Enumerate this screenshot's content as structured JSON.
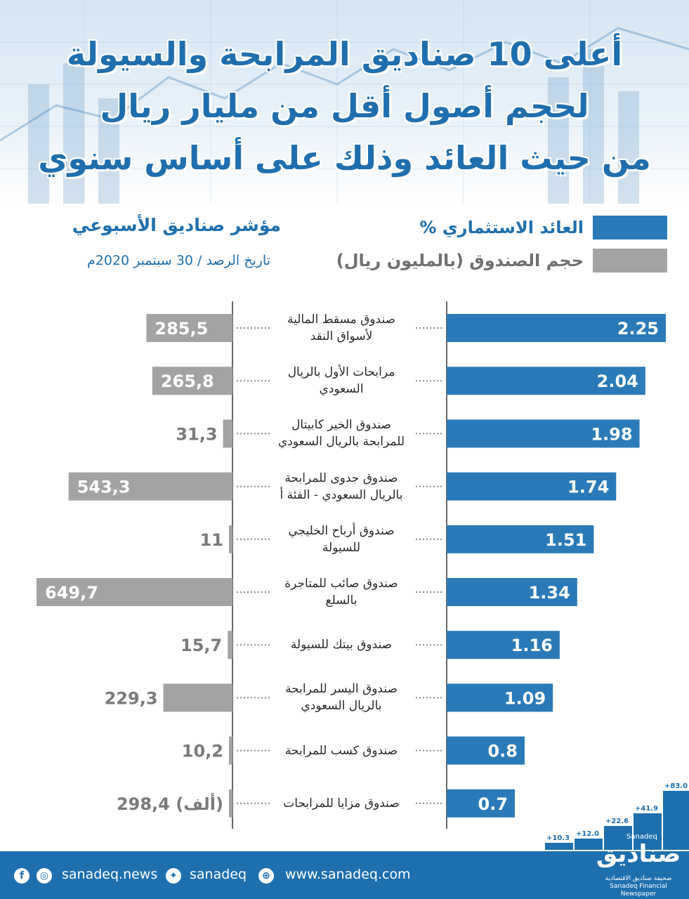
{
  "title": {
    "line1": "أعلى 10 صناديق المرابحة والسيولة",
    "line2": "لحجم أصول أقل من مليار ريال",
    "line3": "من حيث العائد وذلك على أساس سنوي"
  },
  "legend": {
    "return_label": "العائد الاستثماري %",
    "size_label": "حجم الصندوق (بالمليون ريال)",
    "return_color": "#2a7ab8",
    "size_color": "#a3a3a3"
  },
  "index": {
    "title": "مؤشر صناديق الأسبوعي",
    "date": "تاريخ الرصد / 30 سبتمبر 2020م"
  },
  "chart_data": {
    "type": "bar",
    "categories": [
      "صندوق مسقط المالية لأسواق النقد",
      "مرابحات الأول بالريال السعودي",
      "صندوق الخير كابيتال للمرابحة بالريال السعودي",
      "صندوق جدوى للمرابحة بالريال السعودي - الفئة أ",
      "صندوق أرباح الخليجي للسيولة",
      "صندوق صائب للمتاجرة بالسلع",
      "صندوق بيتك للسيولة",
      "صندوق اليسر للمرابحة بالريال السعودي",
      "صندوق كسب للمرابحة",
      "صندوق مزايا للمرابحات"
    ],
    "label_lines": [
      [
        "صندوق مسقط المالية",
        "لأسواق النقد"
      ],
      [
        "مرابحات الأول بالريال",
        "السعودي"
      ],
      [
        "صندوق الخير كابيتال",
        "للمرابحة بالريال السعودي"
      ],
      [
        "صندوق جدوى للمرابحة",
        "بالريال السعودي - الفئة أ"
      ],
      [
        "صندوق أرباح الخليجي",
        "للسيولة"
      ],
      [
        "صندوق صائب للمتاجرة",
        "بالسلع"
      ],
      [
        "صندوق بيتك للسيولة"
      ],
      [
        "صندوق اليسر للمرابحة",
        "بالريال السعودي"
      ],
      [
        "صندوق كسب للمرابحة"
      ],
      [
        "صندوق مزايا للمرابحات"
      ]
    ],
    "series": [
      {
        "name": "العائد الاستثماري %",
        "values": [
          2.25,
          2.04,
          1.98,
          1.74,
          1.51,
          1.34,
          1.16,
          1.09,
          0.8,
          0.7
        ],
        "labels": [
          "2.25",
          "2.04",
          "1.98",
          "1.74",
          "1.51",
          "1.34",
          "1.16",
          "1.09",
          "0.8",
          "0.7"
        ]
      },
      {
        "name": "حجم الصندوق (بالمليون ريال)",
        "values": [
          285.5,
          265.8,
          31.3,
          543.3,
          11,
          649.7,
          15.7,
          229.3,
          10.2,
          0.2984
        ],
        "labels": [
          "285,5",
          "265,8",
          "31,3",
          "543,3",
          "11",
          "649,7",
          "15,7",
          "229,3",
          "10,2",
          "298,4 (ألف)"
        ]
      }
    ]
  },
  "footer": {
    "facebook_icon": "facebook-icon",
    "instagram_icon": "instagram-icon",
    "instagram_handle": "sanadeq.news",
    "twitter_icon": "twitter-icon",
    "twitter_handle": "sanadeq",
    "globe_icon": "globe-icon",
    "website": "www.sanadeq.com",
    "logo_ar": "صناديق",
    "logo_en": "Sanadeq",
    "logo_sub_ar": "صحيفة صناديق الاقتصادية",
    "logo_sub_en": "Sanadeq Financial Newspaper"
  },
  "decoration": {
    "steps": [
      "+10.3",
      "+12.0",
      "+22.6",
      "+41.9",
      "+83.0"
    ]
  }
}
